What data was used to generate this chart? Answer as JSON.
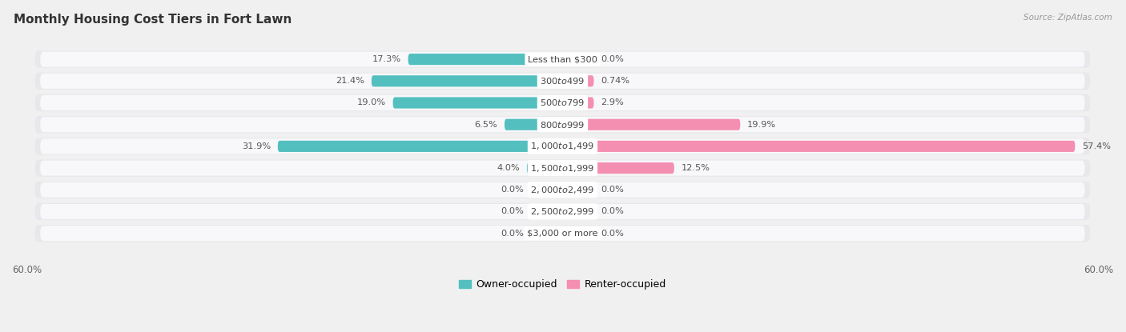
{
  "title": "Monthly Housing Cost Tiers in Fort Lawn",
  "source": "Source: ZipAtlas.com",
  "categories": [
    "Less than $300",
    "$300 to $499",
    "$500 to $799",
    "$800 to $999",
    "$1,000 to $1,499",
    "$1,500 to $1,999",
    "$2,000 to $2,499",
    "$2,500 to $2,999",
    "$3,000 or more"
  ],
  "owner_values": [
    17.3,
    21.4,
    19.0,
    6.5,
    31.9,
    4.0,
    0.0,
    0.0,
    0.0
  ],
  "renter_values": [
    0.0,
    0.74,
    2.9,
    19.9,
    57.4,
    12.5,
    0.0,
    0.0,
    0.0
  ],
  "renter_labels": [
    "0.0%",
    "0.74%",
    "2.9%",
    "19.9%",
    "57.4%",
    "12.5%",
    "0.0%",
    "0.0%",
    "0.0%"
  ],
  "owner_color": "#53bfbf",
  "renter_color": "#f48fb1",
  "background_color": "#f0f0f0",
  "row_bg_color": "#e8e8ec",
  "row_inner_color": "#f8f8fa",
  "axis_limit": 60.0,
  "min_stub": 3.5,
  "title_color": "#333333",
  "source_color": "#999999",
  "value_color": "#555555"
}
